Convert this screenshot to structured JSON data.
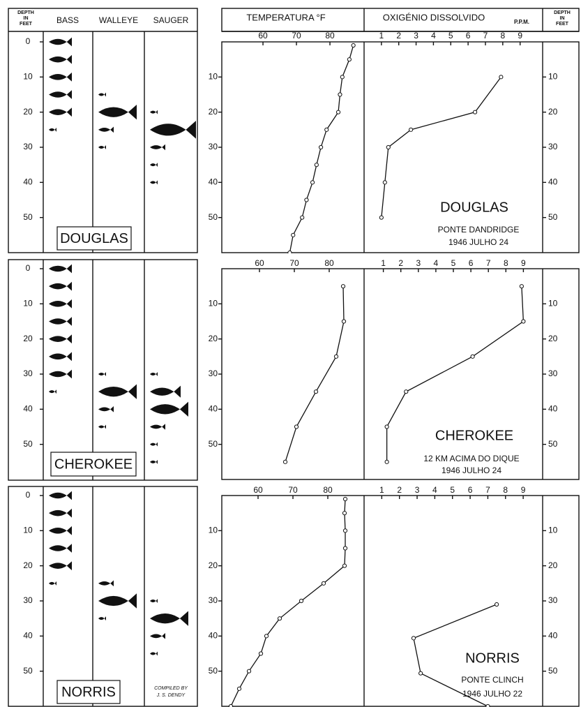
{
  "headers": {
    "depth": [
      "DEPTH",
      "IN",
      "FEET"
    ],
    "species": [
      "BASS",
      "WALLEYE",
      "SAUGER"
    ],
    "temperature": "TEMPERATURA °F",
    "oxygen": "OXIGÉNIO DISSOLVIDO",
    "oxygen_unit": "P.P.M."
  },
  "chart_data": [
    {
      "type": "depth-profile",
      "title": "DOUGLAS",
      "station": "PONTE DANDRIDGE",
      "date": "1946 JULHO 24",
      "ylim": [
        0,
        60
      ],
      "yticks": [
        0,
        10,
        20,
        30,
        40,
        50
      ],
      "depth_ticks": [
        10,
        20,
        30,
        40,
        50
      ],
      "fish": [
        {
          "depths": [
            0,
            5,
            10,
            15,
            20,
            25
          ],
          "sizes": [
            3,
            3,
            3,
            3,
            3,
            1
          ]
        },
        {
          "depths": [
            15,
            20,
            25,
            30
          ],
          "sizes": [
            1,
            5,
            2,
            1
          ]
        },
        {
          "depths": [
            20,
            25,
            30,
            35,
            40
          ],
          "sizes": [
            1,
            6,
            2,
            1,
            1
          ]
        }
      ],
      "temperature": {
        "xlim": [
          47.7,
          90.2
        ],
        "xticks": [
          60,
          70,
          80
        ],
        "values": [
          87,
          85.8,
          83.7,
          83,
          82.5,
          79,
          77.3,
          76,
          74.8,
          73,
          71.7,
          69,
          68
        ],
        "depths": [
          1,
          5,
          10,
          15,
          20,
          25,
          30,
          35,
          40,
          45,
          50,
          55,
          60
        ]
      },
      "oxygen": {
        "xlim": [
          0,
          10.3
        ],
        "xticks": [
          1,
          2,
          3,
          4,
          5,
          6,
          7,
          8,
          9
        ],
        "values": [
          7.9,
          6.4,
          2.7,
          1.4,
          1.2,
          1.0
        ],
        "depths": [
          10,
          20,
          25,
          30,
          40,
          50
        ]
      }
    },
    {
      "type": "depth-profile",
      "title": "CHEROKEE",
      "station": "12 KM ACIMA DO DIQUE",
      "date": "1946 JULHO 24",
      "ylim": [
        0,
        60
      ],
      "yticks": [
        0,
        10,
        20,
        30,
        40,
        50
      ],
      "depth_ticks": [
        10,
        20,
        30,
        40,
        50
      ],
      "fish": [
        {
          "depths": [
            0,
            5,
            10,
            15,
            20,
            25,
            30,
            35
          ],
          "sizes": [
            3,
            3,
            3,
            3,
            3,
            3,
            3,
            1
          ]
        },
        {
          "depths": [
            30,
            35,
            40,
            45
          ],
          "sizes": [
            1,
            5,
            2,
            1
          ]
        },
        {
          "depths": [
            30,
            35,
            40,
            45,
            50,
            55
          ],
          "sizes": [
            1,
            4,
            5,
            2,
            1,
            1
          ]
        }
      ],
      "temperature": {
        "xlim": [
          49.2,
          90
        ],
        "xticks": [
          60,
          70,
          80
        ],
        "values": [
          84,
          84.2,
          82,
          76.2,
          70.6,
          67.4
        ],
        "depths": [
          5,
          15,
          25,
          35,
          45,
          55
        ]
      },
      "oxygen": {
        "xlim": [
          -0.1,
          10.1
        ],
        "xticks": [
          1,
          2,
          3,
          4,
          5,
          6,
          7,
          8,
          9
        ],
        "values": [
          8.9,
          9.0,
          6.1,
          2.3,
          1.2,
          1.2
        ],
        "depths": [
          5,
          15,
          25,
          35,
          45,
          55
        ]
      }
    },
    {
      "type": "depth-profile",
      "title": "NORRIS",
      "station": "PONTE CLINCH",
      "date": "1946 JULHO 22",
      "ylim": [
        0,
        60
      ],
      "yticks": [
        0,
        10,
        20,
        30,
        40,
        50
      ],
      "depth_ticks": [
        10,
        20,
        30,
        40,
        50
      ],
      "credit": [
        "COMPILED BY",
        "J. S. DENDY"
      ],
      "fish": [
        {
          "depths": [
            0,
            5,
            10,
            15,
            20,
            25
          ],
          "sizes": [
            3,
            3,
            3,
            3,
            3,
            1
          ]
        },
        {
          "depths": [
            25,
            30,
            35
          ],
          "sizes": [
            2,
            5,
            1
          ]
        },
        {
          "depths": [
            30,
            35,
            40,
            45
          ],
          "sizes": [
            1,
            5,
            2,
            1
          ]
        }
      ],
      "temperature": {
        "xlim": [
          49.6,
          90.4
        ],
        "xticks": [
          60,
          70,
          80
        ],
        "values": [
          85,
          84.8,
          85,
          85,
          84.8,
          78.8,
          72.4,
          66.2,
          62.4,
          60.8,
          57.4,
          54.6,
          52.2
        ],
        "depths": [
          1,
          5,
          10,
          15,
          20,
          25,
          30,
          35,
          40,
          45,
          50,
          55,
          60
        ]
      },
      "oxygen": {
        "xlim": [
          0,
          10.1
        ],
        "xticks": [
          1,
          2,
          3,
          4,
          5,
          6,
          7,
          8,
          9
        ],
        "values": [
          7.5,
          2.8,
          3.2,
          7.0
        ],
        "depths": [
          31,
          40.6,
          50.6,
          60
        ]
      }
    }
  ]
}
